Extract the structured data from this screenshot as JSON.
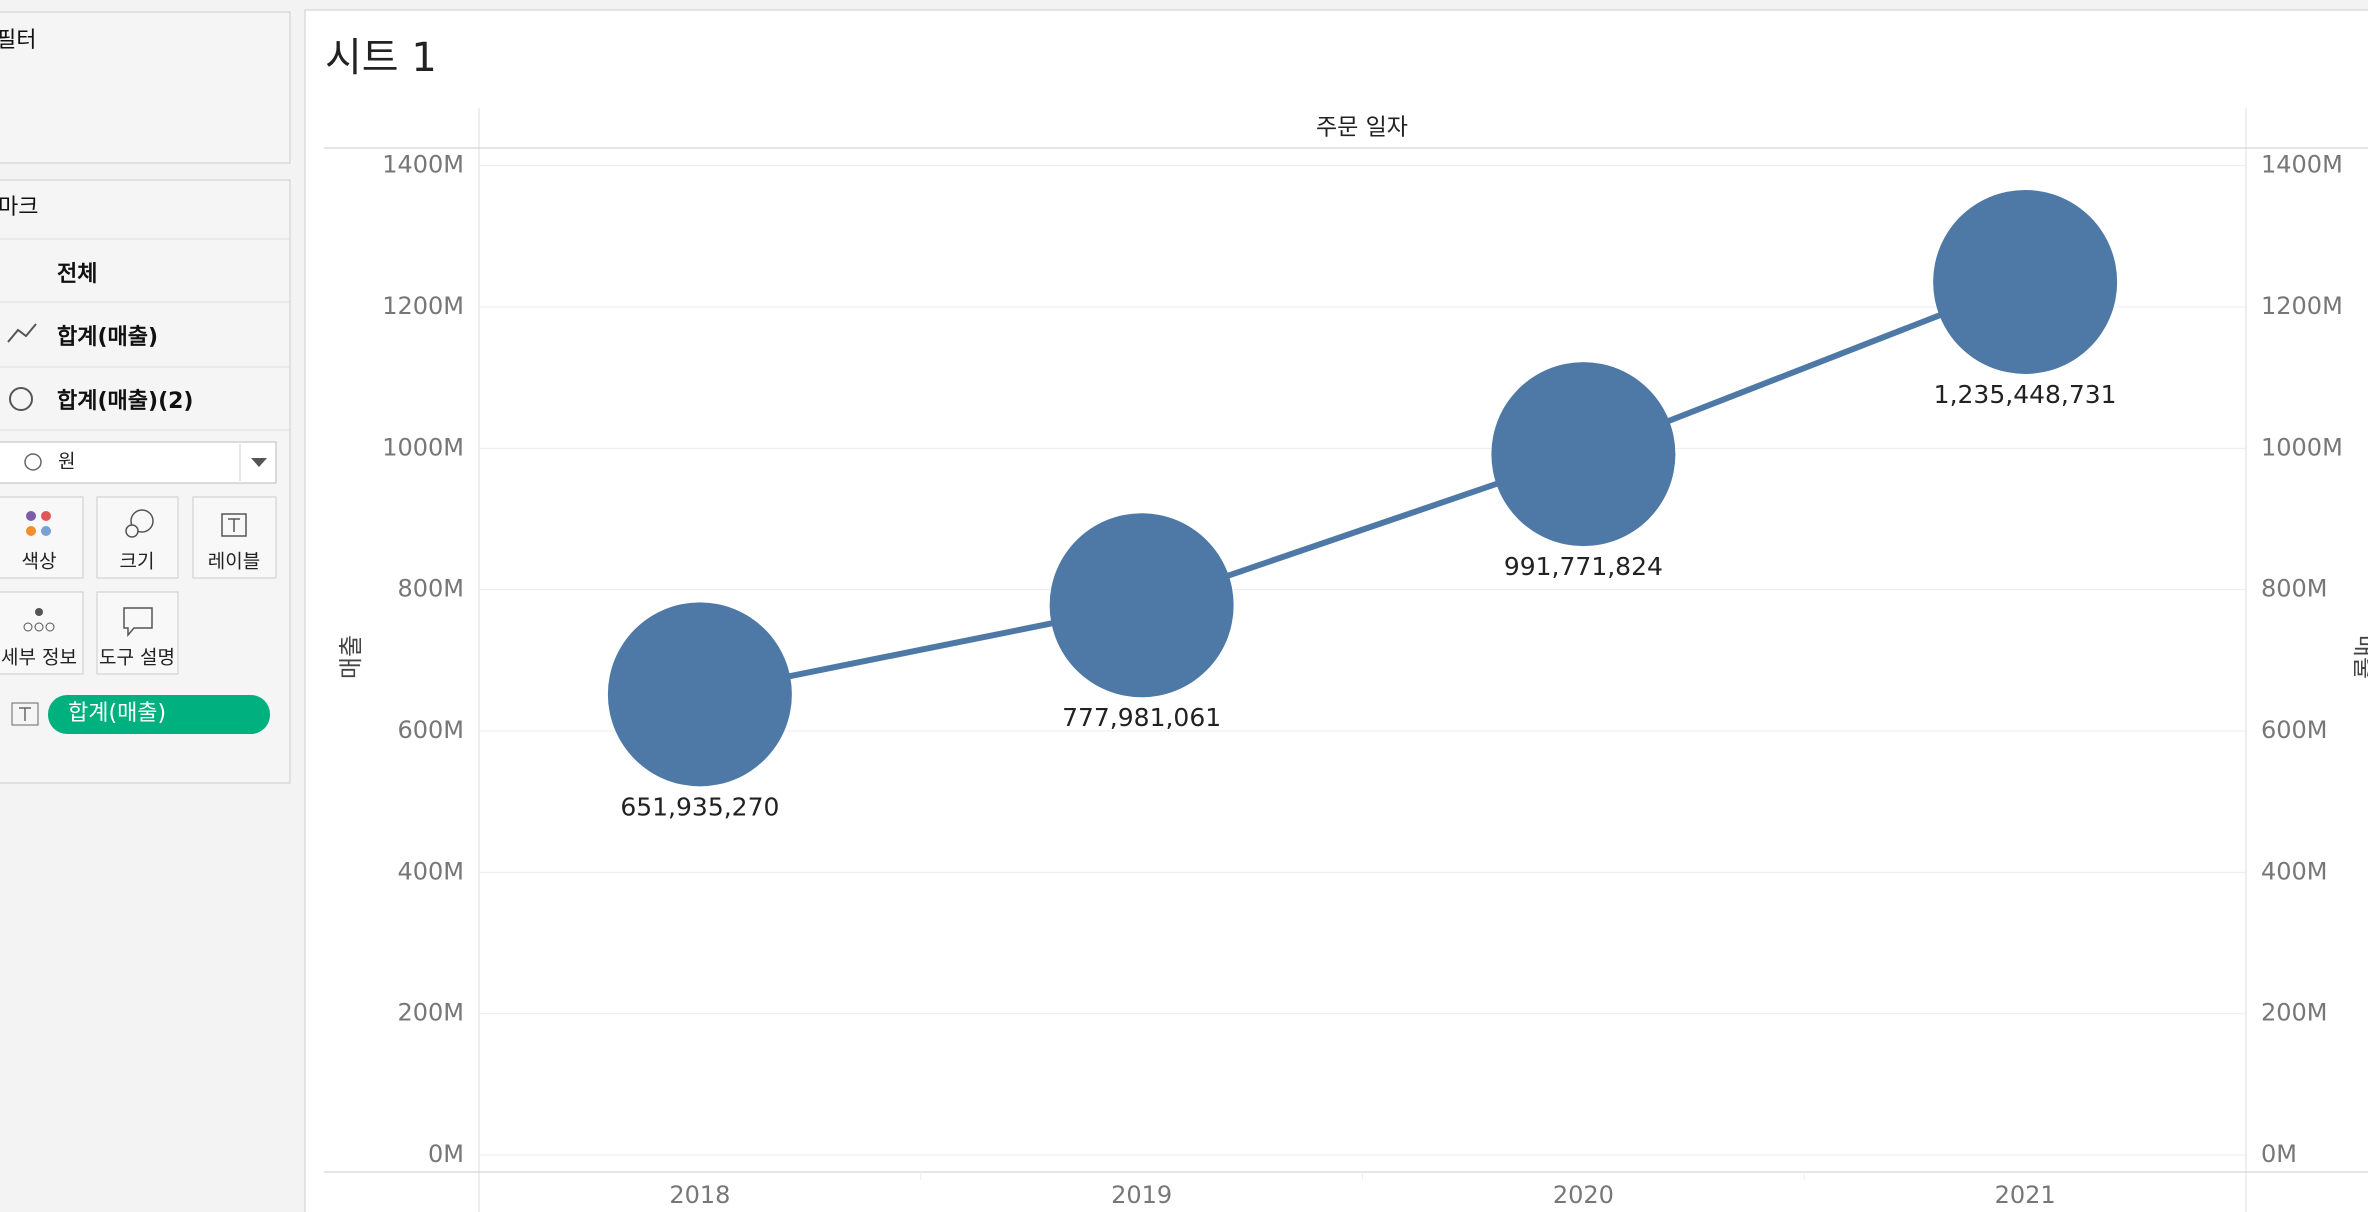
{
  "sidebar": {
    "filters_title": "필터",
    "marks_title": "마크",
    "rows": [
      "전체",
      "합계(매출)",
      "합계(매출)(2)"
    ],
    "mark_type": "원",
    "buttons": [
      "색상",
      "크기",
      "레이블",
      "세부 정보",
      "도구 설명"
    ],
    "pill": "합계(매출)"
  },
  "chart_data": {
    "type": "line-circle",
    "title": "시트 1",
    "column_header": "주문 일자",
    "y_label": "매출",
    "y2_label": "매출",
    "categories": [
      "2018",
      "2019",
      "2020",
      "2021"
    ],
    "series": [
      {
        "mark": "line",
        "color": "#4e79a7",
        "values": [
          651935270,
          777981061,
          991771824,
          1235448731
        ]
      },
      {
        "mark": "circle",
        "axis": "y2",
        "color": "#4e79a7",
        "values": [
          651935270,
          777981061,
          991771824,
          1235448731
        ],
        "value_labels": [
          "651,935,270",
          "777,981,061",
          "991,771,824",
          "1,235,448,731"
        ]
      }
    ],
    "ylim": [
      -24000000,
      1425000000
    ],
    "y2lim": [
      -24000000,
      1425000000
    ],
    "yticks": [
      {
        "value": 0,
        "label": "0M"
      },
      {
        "value": 200000000,
        "label": "200M"
      },
      {
        "value": 400000000,
        "label": "400M"
      },
      {
        "value": 600000000,
        "label": "600M"
      },
      {
        "value": 800000000,
        "label": "800M"
      },
      {
        "value": 1000000000,
        "label": "1000M"
      },
      {
        "value": 1200000000,
        "label": "1200M"
      },
      {
        "value": 1400000000,
        "label": "1400M"
      }
    ],
    "y2ticks": [
      {
        "value": 0,
        "label": "0M"
      },
      {
        "value": 200000000,
        "label": "200M"
      },
      {
        "value": 400000000,
        "label": "400M"
      },
      {
        "value": 600000000,
        "label": "600M"
      },
      {
        "value": 800000000,
        "label": "800M"
      },
      {
        "value": 1000000000,
        "label": "1000M"
      },
      {
        "value": 1200000000,
        "label": "1200M"
      },
      {
        "value": 1400000000,
        "label": "1400M"
      }
    ],
    "grid": true
  }
}
